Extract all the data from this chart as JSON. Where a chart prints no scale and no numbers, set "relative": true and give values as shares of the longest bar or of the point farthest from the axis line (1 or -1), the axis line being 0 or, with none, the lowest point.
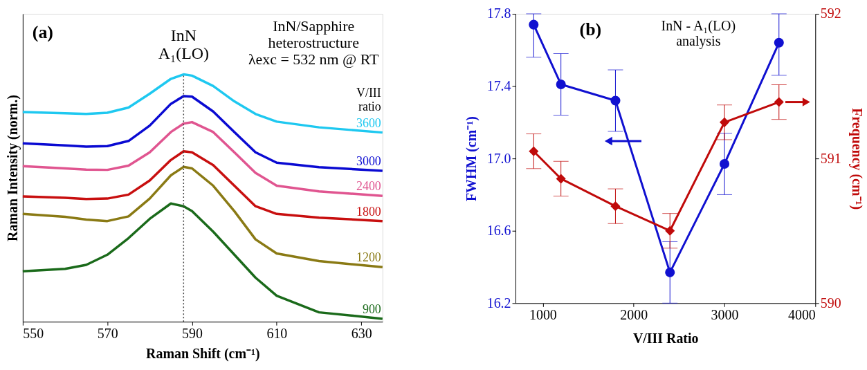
{
  "chart_data": [
    {
      "type": "line",
      "relative": true,
      "xlabel": "Raman Shift (cm⁻¹)",
      "ylabel": "Raman Intensity (norm.)",
      "legend_title": "V/III ratio",
      "marker": "none",
      "line_style": "solid",
      "xlim": [
        550,
        635
      ],
      "xticks": [
        550,
        570,
        590,
        610,
        630
      ],
      "x": [
        550,
        560,
        565,
        570,
        575,
        580,
        585,
        588,
        590,
        595,
        600,
        605,
        610,
        620,
        635
      ],
      "series": [
        {
          "name": "3600",
          "color": "#1ec8f0",
          "values": [
            0.848,
            0.843,
            0.84,
            0.845,
            0.866,
            0.922,
            0.982,
            1.0,
            0.995,
            0.953,
            0.891,
            0.84,
            0.809,
            0.786,
            0.765
          ]
        },
        {
          "name": "3000",
          "color": "#0a0ad2",
          "values": [
            0.721,
            0.713,
            0.708,
            0.71,
            0.731,
            0.793,
            0.881,
            0.912,
            0.91,
            0.85,
            0.767,
            0.685,
            0.643,
            0.625,
            0.61
          ]
        },
        {
          "name": "2400",
          "color": "#e05590",
          "values": [
            0.629,
            0.62,
            0.615,
            0.614,
            0.631,
            0.685,
            0.767,
            0.801,
            0.807,
            0.767,
            0.685,
            0.602,
            0.55,
            0.527,
            0.509
          ]
        },
        {
          "name": "1800",
          "color": "#c80f0f",
          "values": [
            0.507,
            0.501,
            0.496,
            0.498,
            0.514,
            0.571,
            0.654,
            0.689,
            0.685,
            0.633,
            0.55,
            0.467,
            0.436,
            0.421,
            0.407
          ]
        },
        {
          "name": "1200",
          "color": "#8a7a14",
          "values": [
            0.436,
            0.424,
            0.413,
            0.407,
            0.426,
            0.498,
            0.592,
            0.626,
            0.62,
            0.55,
            0.447,
            0.333,
            0.276,
            0.245,
            0.221
          ]
        },
        {
          "name": "900",
          "color": "#1a6a1a",
          "values": [
            0.204,
            0.214,
            0.23,
            0.271,
            0.338,
            0.416,
            0.478,
            0.467,
            0.447,
            0.364,
            0.271,
            0.178,
            0.105,
            0.038,
            0.012
          ]
        }
      ],
      "ref_lines": [
        {
          "axis": "x",
          "value": 588,
          "label": "InN\nA₁(LO)",
          "line_style": "dotted",
          "color": "#444444"
        }
      ],
      "annotations": [
        "(a)",
        "InN/Sapphire\nheterostructure\nλexc = 532 nm @ RT"
      ]
    },
    {
      "type": "line",
      "xlabel": "V/III Ratio",
      "ylabel": "FWHM (cm⁻¹)",
      "y2label": "Frequency (cm⁻¹)",
      "line_style": "solid",
      "x": [
        900,
        1200,
        1800,
        2400,
        3000,
        3600
      ],
      "xlim": [
        700,
        4000
      ],
      "xticks": [
        1000,
        2000,
        3000,
        4000
      ],
      "ylim": [
        16.2,
        17.8
      ],
      "yticks": [
        16.2,
        16.6,
        {
          "value": 17.0,
          "label": "17.0"
        },
        17.4,
        17.8
      ],
      "y2lim": [
        590,
        592
      ],
      "y2ticks": [
        590,
        591,
        592
      ],
      "series": [
        {
          "color": "#1010d0",
          "marker": "circle",
          "values": [
            17.74,
            17.41,
            17.32,
            16.37,
            16.97,
            17.64
          ],
          "errors": [
            [
              17.56,
              17.8
            ],
            0.17,
            0.17,
            0.17,
            0.17,
            [
              17.46,
              17.8
            ]
          ]
        },
        {
          "color": "#c00a0a",
          "marker": "diamond",
          "axis": "y2",
          "values": [
            591.05,
            590.86,
            590.67,
            590.5,
            591.25,
            591.39
          ],
          "errors": [
            0.12,
            0.12,
            0.12,
            0.12,
            0.12,
            0.12
          ]
        }
      ],
      "annotations": [
        "(b)",
        "InN - A₁(LO)\nanalysis"
      ]
    }
  ]
}
